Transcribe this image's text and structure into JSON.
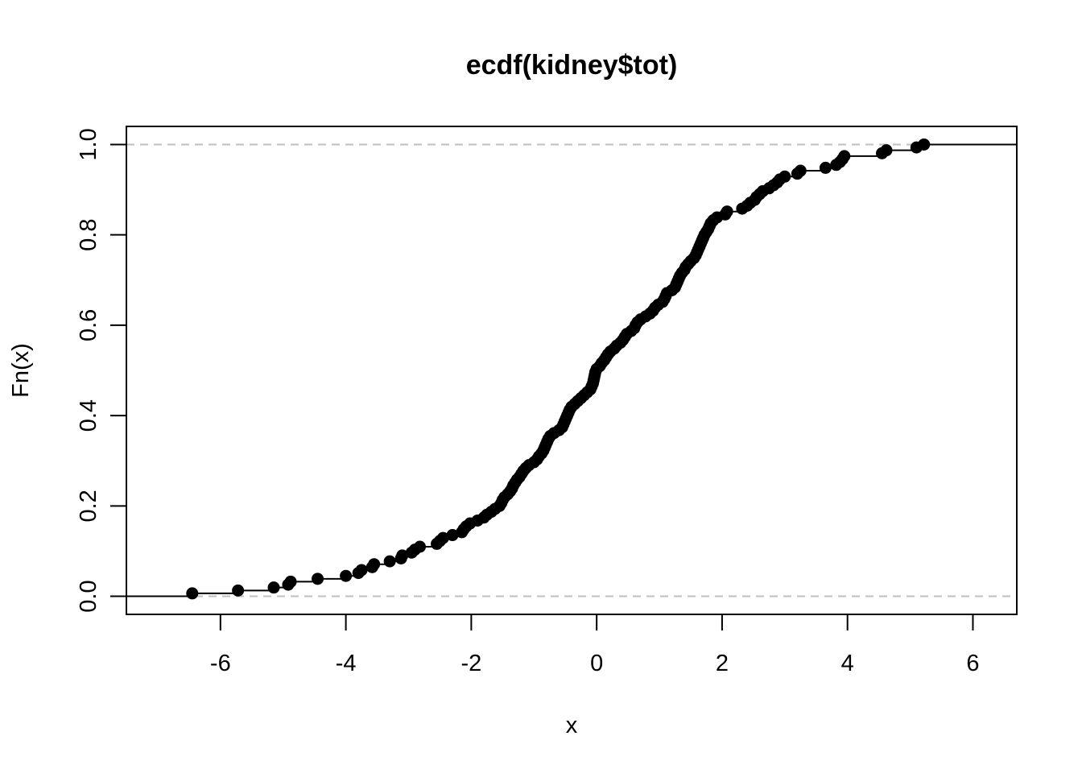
{
  "chart_data": {
    "type": "scatter",
    "subtype": "ecdf-step",
    "title": "ecdf(kidney$tot)",
    "xlabel": "x",
    "ylabel": "Fn(x)",
    "xlim": [
      -7.5,
      6.7
    ],
    "ylim": [
      -0.04,
      1.04
    ],
    "x_ticks": [
      -6,
      -4,
      -2,
      0,
      2,
      4,
      6
    ],
    "x_tick_labels": [
      "-6",
      "-4",
      "-2",
      "0",
      "2",
      "4",
      "6"
    ],
    "y_ticks": [
      0.0,
      0.2,
      0.4,
      0.6,
      0.8,
      1.0
    ],
    "y_tick_labels": [
      "0.0",
      "0.2",
      "0.4",
      "0.6",
      "0.8",
      "1.0"
    ],
    "reference_lines": [
      0,
      1
    ],
    "grid": false,
    "legend": "none",
    "colors": {
      "points": "#000000",
      "step": "#000000",
      "reference": "#bebebe",
      "frame": "#000000"
    },
    "points": [
      {
        "x": -6.45,
        "y": 0.0065
      },
      {
        "x": -5.72,
        "y": 0.0129
      },
      {
        "x": -5.15,
        "y": 0.0194
      },
      {
        "x": -4.92,
        "y": 0.0258
      },
      {
        "x": -4.88,
        "y": 0.0323
      },
      {
        "x": -4.45,
        "y": 0.0387
      },
      {
        "x": -4.0,
        "y": 0.0452
      },
      {
        "x": -3.8,
        "y": 0.0516
      },
      {
        "x": -3.75,
        "y": 0.0581
      },
      {
        "x": -3.58,
        "y": 0.0645
      },
      {
        "x": -3.55,
        "y": 0.071
      },
      {
        "x": -3.3,
        "y": 0.0774
      },
      {
        "x": -3.12,
        "y": 0.0839
      },
      {
        "x": -3.1,
        "y": 0.0903
      },
      {
        "x": -2.95,
        "y": 0.0968
      },
      {
        "x": -2.9,
        "y": 0.1032
      },
      {
        "x": -2.82,
        "y": 0.1097
      },
      {
        "x": -2.55,
        "y": 0.1161
      },
      {
        "x": -2.5,
        "y": 0.1226
      },
      {
        "x": -2.45,
        "y": 0.129
      },
      {
        "x": -2.3,
        "y": 0.1355
      },
      {
        "x": -2.15,
        "y": 0.1419
      },
      {
        "x": -2.12,
        "y": 0.1484
      },
      {
        "x": -2.08,
        "y": 0.1548
      },
      {
        "x": -2.02,
        "y": 0.1613
      },
      {
        "x": -1.9,
        "y": 0.1677
      },
      {
        "x": -1.8,
        "y": 0.1742
      },
      {
        "x": -1.75,
        "y": 0.1806
      },
      {
        "x": -1.68,
        "y": 0.1871
      },
      {
        "x": -1.62,
        "y": 0.1935
      },
      {
        "x": -1.55,
        "y": 0.2
      },
      {
        "x": -1.52,
        "y": 0.2065
      },
      {
        "x": -1.5,
        "y": 0.2129
      },
      {
        "x": -1.47,
        "y": 0.2194
      },
      {
        "x": -1.42,
        "y": 0.2258
      },
      {
        "x": -1.38,
        "y": 0.2323
      },
      {
        "x": -1.35,
        "y": 0.2387
      },
      {
        "x": -1.33,
        "y": 0.2452
      },
      {
        "x": -1.3,
        "y": 0.2516
      },
      {
        "x": -1.27,
        "y": 0.2581
      },
      {
        "x": -1.23,
        "y": 0.2645
      },
      {
        "x": -1.2,
        "y": 0.271
      },
      {
        "x": -1.17,
        "y": 0.2774
      },
      {
        "x": -1.13,
        "y": 0.2839
      },
      {
        "x": -1.08,
        "y": 0.2903
      },
      {
        "x": -1.0,
        "y": 0.2968
      },
      {
        "x": -0.95,
        "y": 0.3032
      },
      {
        "x": -0.92,
        "y": 0.3097
      },
      {
        "x": -0.88,
        "y": 0.3161
      },
      {
        "x": -0.85,
        "y": 0.3226
      },
      {
        "x": -0.83,
        "y": 0.329
      },
      {
        "x": -0.81,
        "y": 0.3355
      },
      {
        "x": -0.79,
        "y": 0.3419
      },
      {
        "x": -0.77,
        "y": 0.3484
      },
      {
        "x": -0.74,
        "y": 0.3548
      },
      {
        "x": -0.68,
        "y": 0.3613
      },
      {
        "x": -0.6,
        "y": 0.3677
      },
      {
        "x": -0.55,
        "y": 0.3742
      },
      {
        "x": -0.53,
        "y": 0.3806
      },
      {
        "x": -0.51,
        "y": 0.3871
      },
      {
        "x": -0.49,
        "y": 0.3935
      },
      {
        "x": -0.47,
        "y": 0.4
      },
      {
        "x": -0.45,
        "y": 0.4065
      },
      {
        "x": -0.43,
        "y": 0.4129
      },
      {
        "x": -0.4,
        "y": 0.4194
      },
      {
        "x": -0.35,
        "y": 0.4258
      },
      {
        "x": -0.3,
        "y": 0.4323
      },
      {
        "x": -0.25,
        "y": 0.4387
      },
      {
        "x": -0.2,
        "y": 0.4452
      },
      {
        "x": -0.15,
        "y": 0.4516
      },
      {
        "x": -0.1,
        "y": 0.4581
      },
      {
        "x": -0.08,
        "y": 0.4645
      },
      {
        "x": -0.06,
        "y": 0.471
      },
      {
        "x": -0.05,
        "y": 0.4774
      },
      {
        "x": -0.04,
        "y": 0.4839
      },
      {
        "x": -0.03,
        "y": 0.4903
      },
      {
        "x": -0.02,
        "y": 0.4968
      },
      {
        "x": 0.0,
        "y": 0.5032
      },
      {
        "x": 0.05,
        "y": 0.5097
      },
      {
        "x": 0.08,
        "y": 0.5161
      },
      {
        "x": 0.12,
        "y": 0.5226
      },
      {
        "x": 0.15,
        "y": 0.529
      },
      {
        "x": 0.18,
        "y": 0.5355
      },
      {
        "x": 0.22,
        "y": 0.5419
      },
      {
        "x": 0.28,
        "y": 0.5484
      },
      {
        "x": 0.32,
        "y": 0.5548
      },
      {
        "x": 0.38,
        "y": 0.5613
      },
      {
        "x": 0.42,
        "y": 0.5677
      },
      {
        "x": 0.45,
        "y": 0.5742
      },
      {
        "x": 0.48,
        "y": 0.5806
      },
      {
        "x": 0.55,
        "y": 0.5871
      },
      {
        "x": 0.6,
        "y": 0.5935
      },
      {
        "x": 0.62,
        "y": 0.6
      },
      {
        "x": 0.65,
        "y": 0.6065
      },
      {
        "x": 0.7,
        "y": 0.6129
      },
      {
        "x": 0.78,
        "y": 0.6194
      },
      {
        "x": 0.85,
        "y": 0.6258
      },
      {
        "x": 0.9,
        "y": 0.6323
      },
      {
        "x": 0.93,
        "y": 0.6387
      },
      {
        "x": 0.98,
        "y": 0.6452
      },
      {
        "x": 1.05,
        "y": 0.6516
      },
      {
        "x": 1.08,
        "y": 0.6581
      },
      {
        "x": 1.1,
        "y": 0.6645
      },
      {
        "x": 1.12,
        "y": 0.671
      },
      {
        "x": 1.2,
        "y": 0.6774
      },
      {
        "x": 1.25,
        "y": 0.6839
      },
      {
        "x": 1.27,
        "y": 0.6903
      },
      {
        "x": 1.29,
        "y": 0.6968
      },
      {
        "x": 1.31,
        "y": 0.7032
      },
      {
        "x": 1.33,
        "y": 0.7097
      },
      {
        "x": 1.36,
        "y": 0.7161
      },
      {
        "x": 1.4,
        "y": 0.7226
      },
      {
        "x": 1.42,
        "y": 0.729
      },
      {
        "x": 1.46,
        "y": 0.7355
      },
      {
        "x": 1.5,
        "y": 0.7419
      },
      {
        "x": 1.55,
        "y": 0.7484
      },
      {
        "x": 1.58,
        "y": 0.7548
      },
      {
        "x": 1.6,
        "y": 0.7613
      },
      {
        "x": 1.62,
        "y": 0.7677
      },
      {
        "x": 1.64,
        "y": 0.7742
      },
      {
        "x": 1.66,
        "y": 0.7806
      },
      {
        "x": 1.68,
        "y": 0.7871
      },
      {
        "x": 1.7,
        "y": 0.7935
      },
      {
        "x": 1.72,
        "y": 0.8
      },
      {
        "x": 1.75,
        "y": 0.8065
      },
      {
        "x": 1.78,
        "y": 0.8129
      },
      {
        "x": 1.8,
        "y": 0.8194
      },
      {
        "x": 1.82,
        "y": 0.8258
      },
      {
        "x": 1.86,
        "y": 0.8323
      },
      {
        "x": 1.92,
        "y": 0.8387
      },
      {
        "x": 2.05,
        "y": 0.8452
      },
      {
        "x": 2.08,
        "y": 0.8516
      },
      {
        "x": 2.32,
        "y": 0.8581
      },
      {
        "x": 2.4,
        "y": 0.8645
      },
      {
        "x": 2.45,
        "y": 0.871
      },
      {
        "x": 2.52,
        "y": 0.8774
      },
      {
        "x": 2.55,
        "y": 0.8839
      },
      {
        "x": 2.6,
        "y": 0.8903
      },
      {
        "x": 2.65,
        "y": 0.8968
      },
      {
        "x": 2.75,
        "y": 0.9032
      },
      {
        "x": 2.82,
        "y": 0.9097
      },
      {
        "x": 2.88,
        "y": 0.9161
      },
      {
        "x": 2.92,
        "y": 0.9226
      },
      {
        "x": 3.0,
        "y": 0.929
      },
      {
        "x": 3.2,
        "y": 0.9355
      },
      {
        "x": 3.25,
        "y": 0.9419
      },
      {
        "x": 3.65,
        "y": 0.9484
      },
      {
        "x": 3.82,
        "y": 0.9548
      },
      {
        "x": 3.88,
        "y": 0.9613
      },
      {
        "x": 3.92,
        "y": 0.9677
      },
      {
        "x": 3.95,
        "y": 0.9742
      },
      {
        "x": 4.55,
        "y": 0.9806
      },
      {
        "x": 4.62,
        "y": 0.9871
      },
      {
        "x": 5.1,
        "y": 0.9935
      },
      {
        "x": 5.22,
        "y": 1.0
      }
    ]
  }
}
